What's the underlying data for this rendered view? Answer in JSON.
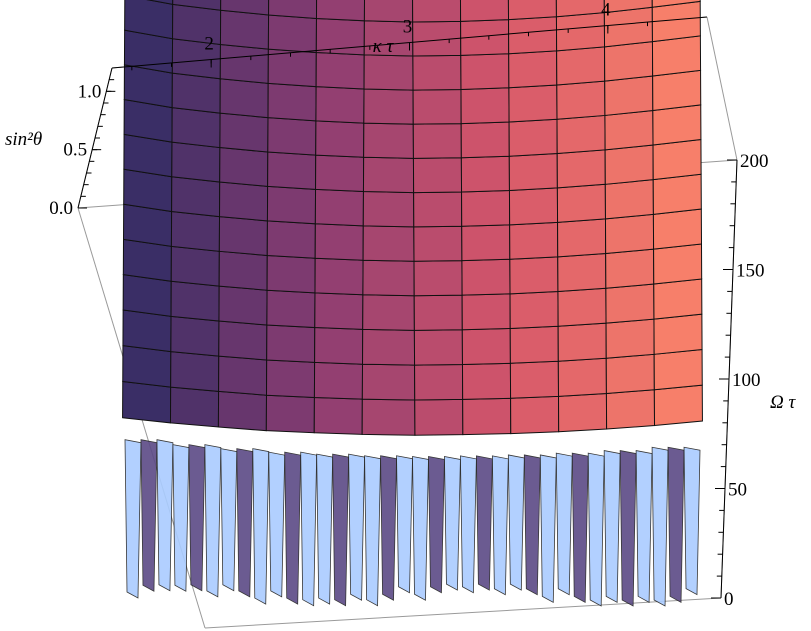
{
  "chart_data": {
    "type": "surface3d",
    "title": "",
    "x_axis": {
      "label": "κ τ",
      "ticks": [
        "2",
        "3",
        "4"
      ],
      "range": [
        1.5,
        4.5
      ]
    },
    "y_axis": {
      "label": "Ω τ",
      "ticks": [
        "0",
        "50",
        "100",
        "150",
        "200"
      ],
      "range": [
        0,
        200
      ]
    },
    "z_axis": {
      "label": "sin²θ",
      "ticks": [
        "0.0",
        "0.5",
        "1.0"
      ],
      "range": [
        0,
        1.2
      ]
    },
    "surface": {
      "description_of_values": "sin²θ over κτ (x) and Ωτ (y)",
      "kappa_tau": [
        1.5,
        1.75,
        2.0,
        2.25,
        2.5,
        2.75,
        3.0,
        3.25,
        3.5,
        3.75,
        4.0,
        4.25,
        4.5
      ],
      "omega_tau": [
        0,
        25,
        50,
        75,
        100,
        125,
        150,
        175,
        200
      ],
      "sin2theta_at_omega_200": [
        1.15,
        1.0,
        0.9,
        0.82,
        0.76,
        0.72,
        0.7,
        0.71,
        0.74,
        0.79,
        0.86,
        0.95,
        1.05
      ],
      "sin2theta_at_omega_0": [
        0.25,
        0.2,
        0.15,
        0.1,
        0.08,
        0.06,
        0.05,
        0.06,
        0.07,
        0.09,
        0.12,
        0.16,
        0.22
      ],
      "colormap": [
        "#3a2e66",
        "#8c3d72",
        "#d4556a",
        "#f77f6a"
      ],
      "low_omega_color": "#aaccff"
    }
  }
}
